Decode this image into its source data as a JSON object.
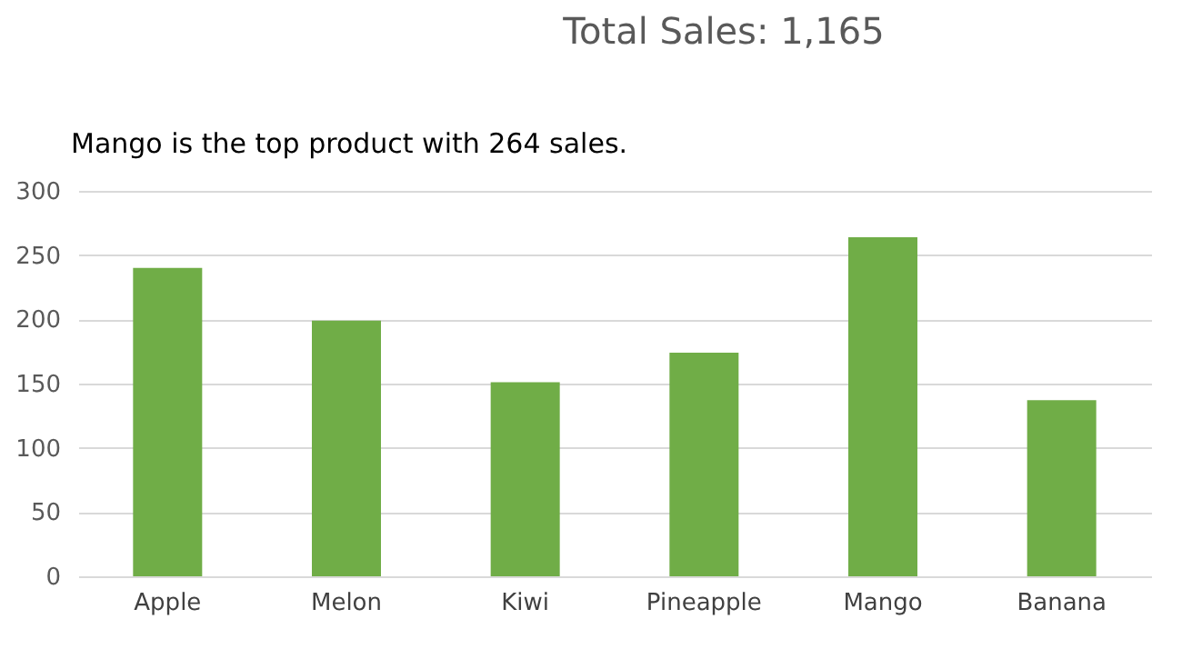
{
  "chart_data": {
    "type": "bar",
    "title": "Total Sales:   1,165",
    "subtitle": "Mango is the top product with 264 sales.",
    "categories": [
      "Apple",
      "Melon",
      "Kiwi",
      "Pineapple",
      "Mango",
      "Banana"
    ],
    "values": [
      240,
      199,
      151,
      174,
      264,
      137
    ],
    "color": "#70ad47",
    "ylim": [
      0,
      300
    ],
    "yticks": [
      0,
      50,
      100,
      150,
      200,
      250,
      300
    ],
    "grid": "y"
  }
}
